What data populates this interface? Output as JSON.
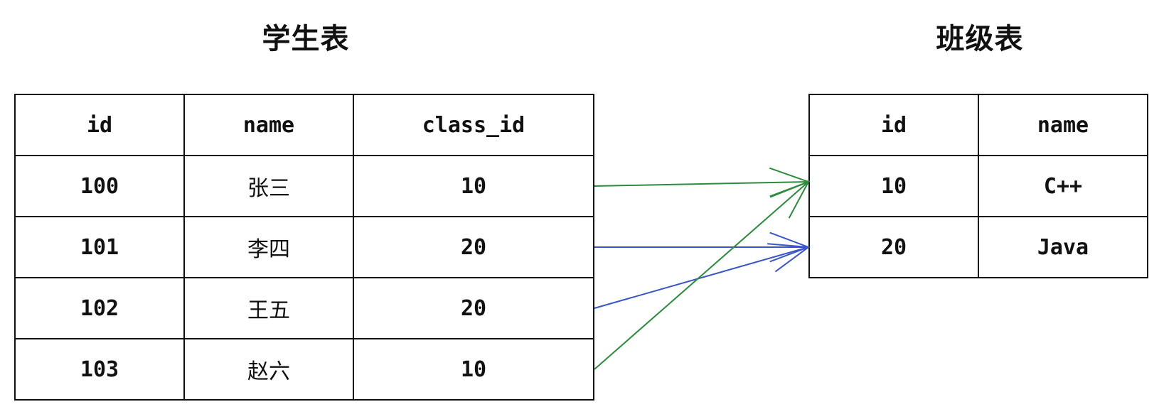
{
  "student_table": {
    "title": "学生表",
    "columns": [
      "id",
      "name",
      "class_id"
    ],
    "rows": [
      [
        "100",
        "张三",
        "10"
      ],
      [
        "101",
        "李四",
        "20"
      ],
      [
        "102",
        "王五",
        "20"
      ],
      [
        "103",
        "赵六",
        "10"
      ]
    ]
  },
  "class_table": {
    "title": "班级表",
    "columns": [
      "id",
      "name"
    ],
    "rows": [
      [
        "10",
        "C++"
      ],
      [
        "20",
        "Java"
      ]
    ]
  },
  "relations": [
    {
      "from_student_row": 0,
      "to_class_row": 0,
      "color": "#2e8b3e"
    },
    {
      "from_student_row": 1,
      "to_class_row": 1,
      "color": "#3a55c8"
    },
    {
      "from_student_row": 2,
      "to_class_row": 1,
      "color": "#3a55c8"
    },
    {
      "from_student_row": 3,
      "to_class_row": 0,
      "color": "#2e8b3e"
    }
  ]
}
